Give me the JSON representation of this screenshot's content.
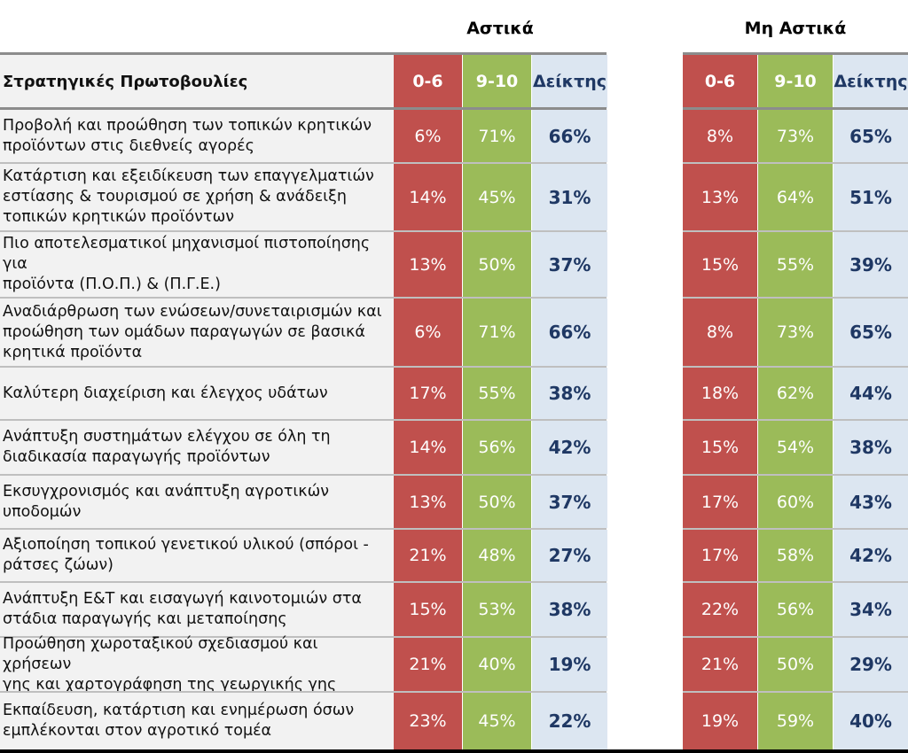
{
  "chart_data": {
    "type": "table",
    "groups": [
      {
        "name": "Αστικά",
        "columns": [
          "0-6",
          "9-10",
          "Δείκτης"
        ]
      },
      {
        "name": "Μη Αστικά",
        "columns": [
          "0-6",
          "9-10",
          "Δείκτης"
        ]
      }
    ],
    "header": "Στρατηγικές Πρωτοβουλίες",
    "rows": [
      {
        "label": [
          "Προβολή και προώθηση των τοπικών κρητικών",
          "προϊόντων στις διεθνείς αγορές"
        ],
        "urban": [
          "6%",
          "71%",
          "66%"
        ],
        "nonurban": [
          "8%",
          "73%",
          "65%"
        ]
      },
      {
        "label": [
          "Κατάρτιση και εξειδίκευση των επαγγελματιών",
          "εστίασης & τουρισμού σε χρήση & ανάδειξη",
          "τοπικών κρητικών προϊόντων"
        ],
        "urban": [
          "14%",
          "45%",
          "31%"
        ],
        "nonurban": [
          "13%",
          "64%",
          "51%"
        ]
      },
      {
        "label": [
          "Πιο αποτελεσματικοί μηχανισμοί πιστοποίησης για",
          "προϊόντα (Π.Ο.Π.) & (Π.Γ.Ε.)"
        ],
        "urban": [
          "13%",
          "50%",
          "37%"
        ],
        "nonurban": [
          "15%",
          "55%",
          "39%"
        ]
      },
      {
        "label": [
          "Αναδιάρθρωση των ενώσεων/συνεταιρισμών και",
          "προώθηση των ομάδων παραγωγών σε βασικά",
          "κρητικά προϊόντα"
        ],
        "urban": [
          "6%",
          "71%",
          "66%"
        ],
        "nonurban": [
          "8%",
          "73%",
          "65%"
        ]
      },
      {
        "label": [
          "Καλύτερη διαχείριση και έλεγχος υδάτων"
        ],
        "urban": [
          "17%",
          "55%",
          "38%"
        ],
        "nonurban": [
          "18%",
          "62%",
          "44%"
        ]
      },
      {
        "label": [
          "Ανάπτυξη συστημάτων ελέγχου σε όλη τη",
          "διαδικασία παραγωγής προϊόντων"
        ],
        "urban": [
          "14%",
          "56%",
          "42%"
        ],
        "nonurban": [
          "15%",
          "54%",
          "38%"
        ]
      },
      {
        "label": [
          "Εκσυγχρονισμός και ανάπτυξη αγροτικών",
          "υποδομών"
        ],
        "urban": [
          "13%",
          "50%",
          "37%"
        ],
        "nonurban": [
          "17%",
          "60%",
          "43%"
        ]
      },
      {
        "label": [
          "Αξιοποίηση τοπικού γενετικού υλικού (σπόροι -",
          "ράτσες ζώων)"
        ],
        "urban": [
          "21%",
          "48%",
          "27%"
        ],
        "nonurban": [
          "17%",
          "58%",
          "42%"
        ]
      },
      {
        "label": [
          "Ανάπτυξη Ε&Τ και εισαγωγή καινοτομιών στα",
          "στάδια παραγωγής και μεταποίησης"
        ],
        "urban": [
          "15%",
          "53%",
          "38%"
        ],
        "nonurban": [
          "22%",
          "56%",
          "34%"
        ]
      },
      {
        "label": [
          "Προώθηση χωροταξικού σχεδιασμού και χρήσεων",
          "γης και χαρτογράφηση της γεωργικής γης"
        ],
        "urban": [
          "21%",
          "40%",
          "19%"
        ],
        "nonurban": [
          "21%",
          "50%",
          "29%"
        ]
      },
      {
        "label": [
          "Εκπαίδευση, κατάρτιση και ενημέρωση όσων",
          "εμπλέκονται στον αγροτικό τομέα"
        ],
        "urban": [
          "23%",
          "45%",
          "22%"
        ],
        "nonurban": [
          "19%",
          "59%",
          "40%"
        ]
      }
    ]
  },
  "colors": {
    "low": "#c0504d",
    "high": "#9bbb59",
    "index_bg": "#dce6f1",
    "index_text": "#1f3864"
  }
}
